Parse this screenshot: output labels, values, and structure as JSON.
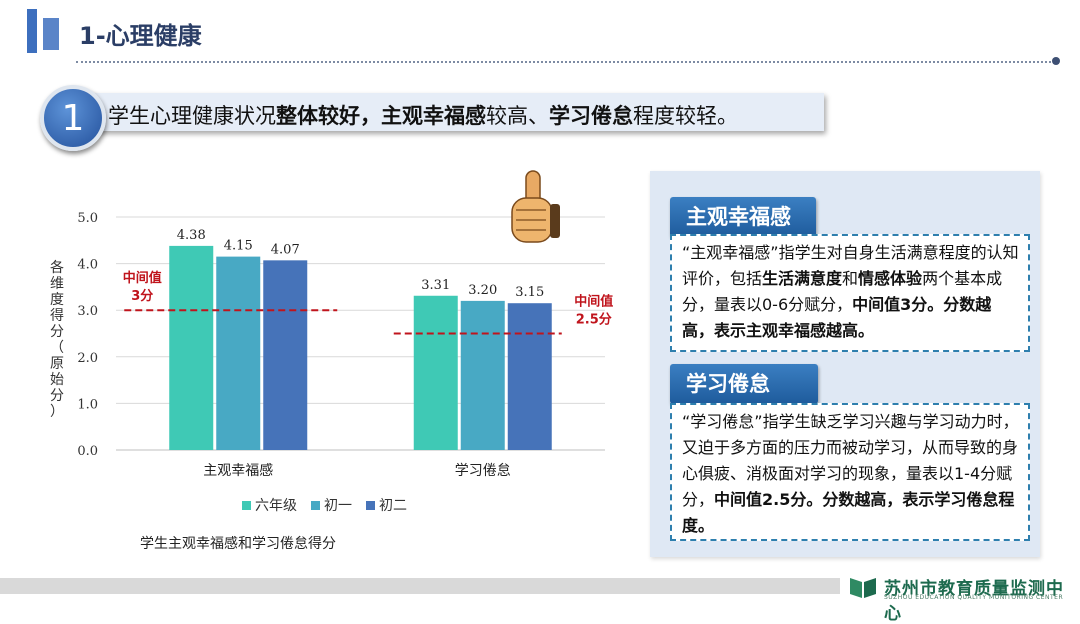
{
  "header": {
    "title": "1-心理健康",
    "point_number": "1",
    "summary": [
      {
        "text": "学生心理健康状况",
        "bold": false
      },
      {
        "text": "整体较好，主观幸福感",
        "bold": true
      },
      {
        "text": "较高、",
        "bold": false
      },
      {
        "text": "学习倦怠",
        "bold": true
      },
      {
        "text": "程度较轻。",
        "bold": false
      }
    ]
  },
  "chart_data": {
    "type": "bar",
    "title": "学生主观幸福感和学习倦怠得分",
    "ylabel": "各维度得分（原始分）",
    "xlabel": "",
    "categories": [
      "主观幸福感",
      "学习倦怠"
    ],
    "series": [
      {
        "name": "六年级",
        "values": [
          4.38,
          3.31
        ],
        "color": "#3fc9b5"
      },
      {
        "name": "初一",
        "values": [
          4.15,
          3.2
        ],
        "color": "#48a9c4"
      },
      {
        "name": "初二",
        "values": [
          4.07,
          3.15
        ],
        "color": "#4673b9"
      }
    ],
    "ylim": [
      0,
      5
    ],
    "yticks": [
      "0.0",
      "1.0",
      "2.0",
      "3.0",
      "4.0",
      "5.0"
    ],
    "grid": true,
    "legend": "bottom",
    "reference_lines": [
      {
        "category": "主观幸福感",
        "value": 3.0,
        "label_line1": "中间值",
        "label_line2": "3分",
        "color": "#c0141c"
      },
      {
        "category": "学习倦怠",
        "value": 2.5,
        "label_line1": "中间值",
        "label_line2": "2.5分",
        "color": "#c0141c"
      }
    ]
  },
  "definitions": [
    {
      "tag": "主观幸福感",
      "parts": [
        {
          "text": "“主观幸福感”指学生对自身生活满意程度的认知评价，包括",
          "bold": false
        },
        {
          "text": "生活满意度",
          "bold": true
        },
        {
          "text": "和",
          "bold": false
        },
        {
          "text": "情感体验",
          "bold": true
        },
        {
          "text": "两个基本成分，量表以0-6分赋分，",
          "bold": false
        },
        {
          "text": "中间值3分。分数越高，表示主观幸福感越高。",
          "bold": true
        }
      ]
    },
    {
      "tag": "学习倦怠",
      "parts": [
        {
          "text": "“学习倦怠”指学生缺乏学习兴趣与学习动力时，又迫于多方面的压力而被动学习，从而导致的身心俱疲、消极面对学习的现象，量表以1-4分赋分，",
          "bold": false
        },
        {
          "text": "中间值2.5分。分数越高，表示学习倦怠程度。",
          "bold": true
        }
      ]
    }
  ],
  "footer": {
    "logo_name": "苏州市教育质量监测中心",
    "logo_subtitle": "SUZHOU EDUCATION QUALITY MONITORING CENTER",
    "logo_color": "#1d6a4e"
  }
}
